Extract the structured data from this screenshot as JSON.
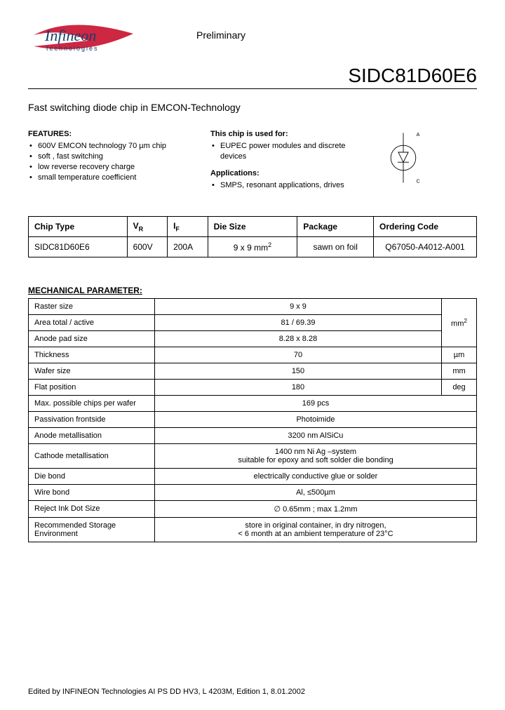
{
  "header": {
    "logo_main": "Infineon",
    "logo_sub": "technologies",
    "preliminary": "Preliminary",
    "part_number": "SIDC81D60E6",
    "logo_colors": {
      "text": "#153d6b",
      "swoosh": "#c8102e"
    }
  },
  "subtitle": "Fast switching diode chip in EMCON-Technology",
  "features": {
    "heading": "FEATURES:",
    "items": [
      "600V EMCON technology 70 µm chip",
      "soft , fast switching",
      "low reverse recovery charge",
      "small temperature coefficient"
    ]
  },
  "used_for": {
    "heading": "This chip is used for:",
    "items": [
      "EUPEC power modules and discrete devices"
    ]
  },
  "applications": {
    "heading": "Applications:",
    "items": [
      "SMPS, resonant applications, drives"
    ]
  },
  "diode_labels": {
    "anode": "A",
    "cathode": "C"
  },
  "table1": {
    "headers": [
      "Chip Type",
      "V_R",
      "I_F",
      "Die Size",
      "Package",
      "Ordering Code"
    ],
    "row": {
      "chip_type": "SIDC81D60E6",
      "vr": "600V",
      "if": "200A",
      "die_size": "9 x 9 mm²",
      "package": "sawn on foil",
      "ordering_code": "Q67050-A4012-A001"
    },
    "col_widths_pct": [
      22,
      9,
      9,
      20,
      17,
      23
    ]
  },
  "mech_heading": "MECHANICAL PARAMETER:",
  "mech_rows": [
    {
      "name": "Raster size",
      "value": "9 x 9",
      "unit": ""
    },
    {
      "name": "Area total / active",
      "value": "81 / 69.39",
      "unit": "mm²"
    },
    {
      "name": "Anode pad size",
      "value": "8.28 x 8.28",
      "unit": ""
    },
    {
      "name": "Thickness",
      "value": "70",
      "unit": "µm"
    },
    {
      "name": "Wafer size",
      "value": "150",
      "unit": "mm"
    },
    {
      "name": "Flat position",
      "value": "180",
      "unit": "deg"
    },
    {
      "name": "Max. possible chips per wafer",
      "value": "169 pcs",
      "unit": null
    },
    {
      "name": "Passivation frontside",
      "value": "Photoimide",
      "unit": null
    },
    {
      "name": "Anode metallisation",
      "value": "3200 nm AlSiCu",
      "unit": null
    },
    {
      "name": "Cathode metallisation",
      "value": "1400 nm Ni Ag –system\nsuitable for epoxy and soft solder die bonding",
      "unit": null
    },
    {
      "name": "Die bond",
      "value": "electrically conductive glue or solder",
      "unit": null
    },
    {
      "name": "Wire bond",
      "value": "Al, ≤500µm",
      "unit": null
    },
    {
      "name": "Reject Ink Dot Size",
      "value": "∅ 0.65mm ; max 1.2mm",
      "unit": null
    },
    {
      "name": "Recommended Storage Environment",
      "value": "store in original container, in dry nitrogen,\n< 6 month at an ambient temperature of 23°C",
      "unit": null
    }
  ],
  "mech_unit_group1_rowspan": 3,
  "footer": "Edited by INFINEON Technologies AI PS DD HV3,  L 4203M, Edition 1,  8.01.2002",
  "styling": {
    "body_font": "Arial",
    "body_font_size_pt": 11,
    "part_number_font_size_pt": 28,
    "border_color": "#000000",
    "background_color": "#ffffff"
  }
}
